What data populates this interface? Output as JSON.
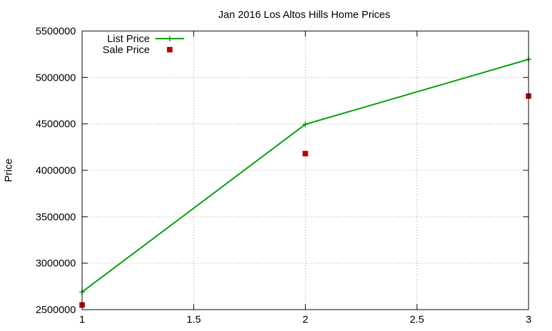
{
  "chart_data": {
    "type": "line",
    "title": "Jan 2016 Los Altos Hills Home Prices",
    "xlabel": "",
    "ylabel": "Price",
    "x": [
      1,
      2,
      3
    ],
    "xlim": [
      1,
      3
    ],
    "ylim": [
      2500000,
      5500000
    ],
    "xticks": [
      1,
      1.5,
      2,
      2.5,
      3
    ],
    "xtick_labels": [
      "1",
      "1.5",
      "2",
      "2.5",
      "3"
    ],
    "yticks": [
      2500000,
      3000000,
      3500000,
      4000000,
      4500000,
      5000000,
      5500000
    ],
    "ytick_labels": [
      "2500000",
      "3000000",
      "3500000",
      "4000000",
      "4500000",
      "5000000",
      "5500000"
    ],
    "grid": true,
    "legend_position": "top-left",
    "series": [
      {
        "name": "List Price",
        "type": "line",
        "marker": "plus",
        "color": "#00a000",
        "values": [
          2690000,
          4495000,
          5195000
        ]
      },
      {
        "name": "Sale Price",
        "type": "scatter",
        "marker": "square",
        "color": "#c00000",
        "values": [
          2550000,
          4180000,
          4800000
        ]
      }
    ]
  }
}
